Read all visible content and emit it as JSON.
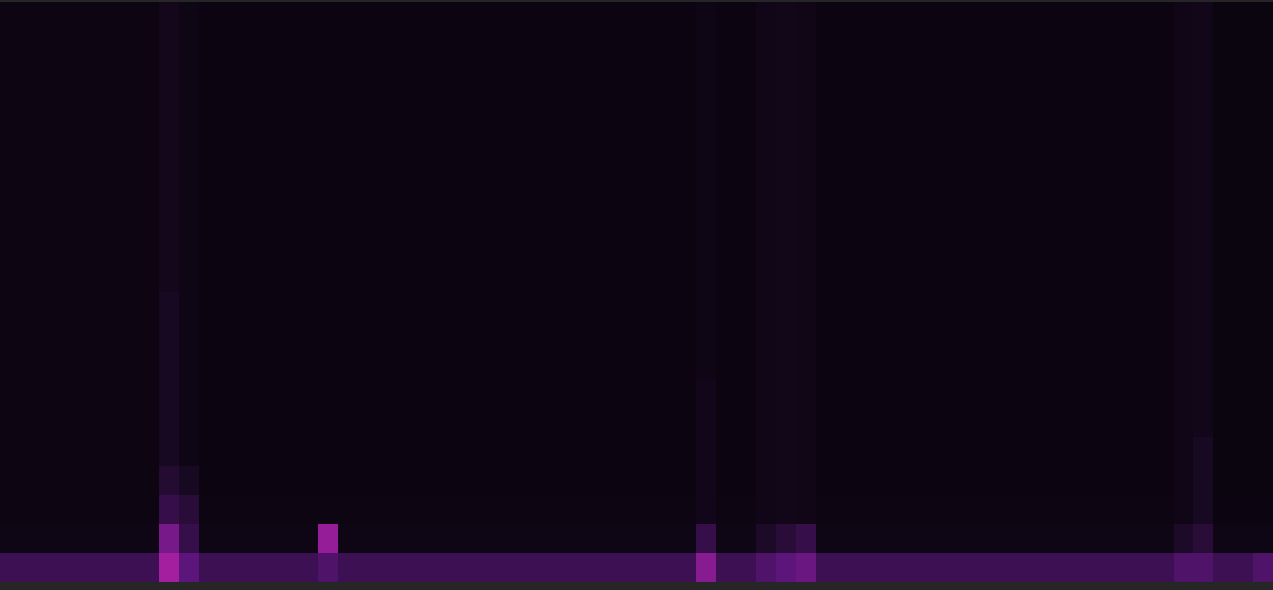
{
  "chart_data": {
    "type": "heatmap",
    "tick_labels": false,
    "zlim": [
      0,
      1
    ],
    "cells": [
      [
        0.08,
        0.08,
        0.08,
        0.08,
        0.08,
        0.08,
        0.08,
        0.08,
        0.16,
        0.1,
        0.07,
        0.07,
        0.07,
        0.07,
        0.07,
        0.07,
        0.07,
        0.07,
        0.07,
        0.07,
        0.07,
        0.07,
        0.07,
        0.07,
        0.07,
        0.07,
        0.07,
        0.07,
        0.07,
        0.07,
        0.07,
        0.07,
        0.07,
        0.07,
        0.07,
        0.1,
        0.07,
        0.07,
        0.12,
        0.13,
        0.11,
        0.07,
        0.07,
        0.07,
        0.07,
        0.07,
        0.07,
        0.07,
        0.07,
        0.07,
        0.07,
        0.07,
        0.07,
        0.07,
        0.07,
        0.07,
        0.07,
        0.07,
        0.07,
        0.12,
        0.14,
        0.06,
        0.06,
        0.06
      ],
      [
        0.08,
        0.08,
        0.08,
        0.08,
        0.08,
        0.08,
        0.08,
        0.08,
        0.16,
        0.1,
        0.07,
        0.07,
        0.07,
        0.07,
        0.07,
        0.07,
        0.07,
        0.07,
        0.07,
        0.07,
        0.07,
        0.07,
        0.07,
        0.07,
        0.07,
        0.07,
        0.07,
        0.07,
        0.07,
        0.07,
        0.07,
        0.07,
        0.07,
        0.07,
        0.07,
        0.1,
        0.07,
        0.07,
        0.12,
        0.13,
        0.11,
        0.07,
        0.07,
        0.07,
        0.07,
        0.07,
        0.07,
        0.07,
        0.07,
        0.07,
        0.07,
        0.07,
        0.07,
        0.07,
        0.07,
        0.07,
        0.07,
        0.07,
        0.07,
        0.12,
        0.14,
        0.06,
        0.06,
        0.06
      ],
      [
        0.08,
        0.08,
        0.08,
        0.08,
        0.08,
        0.08,
        0.08,
        0.08,
        0.16,
        0.1,
        0.07,
        0.07,
        0.07,
        0.07,
        0.07,
        0.07,
        0.07,
        0.07,
        0.07,
        0.07,
        0.07,
        0.07,
        0.07,
        0.07,
        0.07,
        0.07,
        0.07,
        0.07,
        0.07,
        0.07,
        0.07,
        0.07,
        0.07,
        0.07,
        0.07,
        0.1,
        0.07,
        0.07,
        0.12,
        0.13,
        0.11,
        0.07,
        0.07,
        0.07,
        0.07,
        0.07,
        0.07,
        0.07,
        0.07,
        0.07,
        0.07,
        0.07,
        0.07,
        0.07,
        0.07,
        0.07,
        0.07,
        0.07,
        0.07,
        0.12,
        0.14,
        0.06,
        0.06,
        0.06
      ],
      [
        0.08,
        0.08,
        0.08,
        0.08,
        0.08,
        0.08,
        0.08,
        0.08,
        0.16,
        0.1,
        0.07,
        0.07,
        0.07,
        0.07,
        0.07,
        0.07,
        0.07,
        0.07,
        0.07,
        0.07,
        0.07,
        0.07,
        0.07,
        0.07,
        0.07,
        0.07,
        0.07,
        0.07,
        0.07,
        0.07,
        0.07,
        0.07,
        0.07,
        0.07,
        0.07,
        0.1,
        0.07,
        0.07,
        0.12,
        0.13,
        0.11,
        0.07,
        0.07,
        0.07,
        0.07,
        0.07,
        0.07,
        0.07,
        0.07,
        0.07,
        0.07,
        0.07,
        0.07,
        0.07,
        0.07,
        0.07,
        0.07,
        0.07,
        0.07,
        0.12,
        0.14,
        0.06,
        0.06,
        0.06
      ],
      [
        0.08,
        0.08,
        0.08,
        0.08,
        0.08,
        0.08,
        0.08,
        0.08,
        0.16,
        0.1,
        0.07,
        0.07,
        0.07,
        0.07,
        0.07,
        0.07,
        0.07,
        0.07,
        0.07,
        0.07,
        0.07,
        0.07,
        0.07,
        0.07,
        0.07,
        0.07,
        0.07,
        0.07,
        0.07,
        0.07,
        0.07,
        0.07,
        0.07,
        0.07,
        0.07,
        0.1,
        0.07,
        0.07,
        0.12,
        0.13,
        0.11,
        0.07,
        0.07,
        0.07,
        0.07,
        0.07,
        0.07,
        0.07,
        0.07,
        0.07,
        0.07,
        0.07,
        0.07,
        0.07,
        0.07,
        0.07,
        0.07,
        0.07,
        0.07,
        0.12,
        0.14,
        0.06,
        0.06,
        0.06
      ],
      [
        0.08,
        0.08,
        0.08,
        0.08,
        0.08,
        0.08,
        0.08,
        0.08,
        0.16,
        0.1,
        0.07,
        0.07,
        0.07,
        0.07,
        0.07,
        0.07,
        0.07,
        0.07,
        0.07,
        0.07,
        0.07,
        0.07,
        0.07,
        0.07,
        0.07,
        0.07,
        0.07,
        0.07,
        0.07,
        0.07,
        0.07,
        0.07,
        0.07,
        0.07,
        0.07,
        0.1,
        0.07,
        0.07,
        0.12,
        0.13,
        0.11,
        0.07,
        0.07,
        0.07,
        0.07,
        0.07,
        0.07,
        0.07,
        0.07,
        0.07,
        0.07,
        0.07,
        0.07,
        0.07,
        0.07,
        0.07,
        0.07,
        0.07,
        0.07,
        0.12,
        0.14,
        0.06,
        0.06,
        0.06
      ],
      [
        0.08,
        0.08,
        0.08,
        0.08,
        0.08,
        0.08,
        0.08,
        0.08,
        0.16,
        0.1,
        0.07,
        0.07,
        0.07,
        0.07,
        0.07,
        0.07,
        0.07,
        0.07,
        0.07,
        0.07,
        0.07,
        0.07,
        0.07,
        0.07,
        0.07,
        0.07,
        0.07,
        0.07,
        0.07,
        0.07,
        0.07,
        0.07,
        0.07,
        0.07,
        0.07,
        0.1,
        0.07,
        0.07,
        0.12,
        0.13,
        0.11,
        0.07,
        0.07,
        0.07,
        0.07,
        0.07,
        0.07,
        0.07,
        0.07,
        0.07,
        0.07,
        0.07,
        0.07,
        0.07,
        0.07,
        0.07,
        0.07,
        0.07,
        0.07,
        0.12,
        0.14,
        0.06,
        0.06,
        0.06
      ],
      [
        0.08,
        0.08,
        0.08,
        0.08,
        0.08,
        0.08,
        0.08,
        0.08,
        0.16,
        0.1,
        0.07,
        0.07,
        0.07,
        0.07,
        0.07,
        0.07,
        0.07,
        0.07,
        0.07,
        0.07,
        0.07,
        0.07,
        0.07,
        0.07,
        0.07,
        0.07,
        0.07,
        0.07,
        0.07,
        0.07,
        0.07,
        0.07,
        0.07,
        0.07,
        0.07,
        0.1,
        0.07,
        0.07,
        0.12,
        0.13,
        0.11,
        0.07,
        0.07,
        0.07,
        0.07,
        0.07,
        0.07,
        0.07,
        0.07,
        0.07,
        0.07,
        0.07,
        0.07,
        0.07,
        0.07,
        0.07,
        0.07,
        0.07,
        0.07,
        0.12,
        0.14,
        0.06,
        0.06,
        0.06
      ],
      [
        0.08,
        0.08,
        0.08,
        0.08,
        0.08,
        0.08,
        0.08,
        0.08,
        0.16,
        0.1,
        0.07,
        0.07,
        0.07,
        0.07,
        0.07,
        0.07,
        0.07,
        0.07,
        0.07,
        0.07,
        0.07,
        0.07,
        0.07,
        0.07,
        0.07,
        0.07,
        0.07,
        0.07,
        0.07,
        0.07,
        0.07,
        0.07,
        0.07,
        0.07,
        0.07,
        0.1,
        0.07,
        0.07,
        0.12,
        0.13,
        0.11,
        0.07,
        0.07,
        0.07,
        0.07,
        0.07,
        0.07,
        0.07,
        0.07,
        0.07,
        0.07,
        0.07,
        0.07,
        0.07,
        0.07,
        0.07,
        0.07,
        0.07,
        0.07,
        0.12,
        0.14,
        0.06,
        0.06,
        0.06
      ],
      [
        0.08,
        0.08,
        0.08,
        0.08,
        0.08,
        0.08,
        0.08,
        0.08,
        0.16,
        0.1,
        0.07,
        0.07,
        0.07,
        0.07,
        0.07,
        0.07,
        0.07,
        0.07,
        0.07,
        0.07,
        0.07,
        0.07,
        0.07,
        0.07,
        0.07,
        0.07,
        0.07,
        0.07,
        0.07,
        0.07,
        0.07,
        0.07,
        0.07,
        0.07,
        0.07,
        0.1,
        0.07,
        0.07,
        0.12,
        0.13,
        0.11,
        0.07,
        0.07,
        0.07,
        0.07,
        0.07,
        0.07,
        0.07,
        0.07,
        0.07,
        0.07,
        0.07,
        0.07,
        0.07,
        0.07,
        0.07,
        0.07,
        0.07,
        0.07,
        0.12,
        0.14,
        0.06,
        0.06,
        0.06
      ],
      [
        0.08,
        0.08,
        0.08,
        0.08,
        0.08,
        0.08,
        0.08,
        0.08,
        0.2,
        0.1,
        0.07,
        0.07,
        0.07,
        0.07,
        0.07,
        0.07,
        0.07,
        0.07,
        0.07,
        0.07,
        0.07,
        0.07,
        0.07,
        0.07,
        0.07,
        0.07,
        0.07,
        0.07,
        0.07,
        0.07,
        0.07,
        0.07,
        0.07,
        0.07,
        0.07,
        0.1,
        0.07,
        0.07,
        0.12,
        0.13,
        0.11,
        0.07,
        0.07,
        0.07,
        0.07,
        0.07,
        0.07,
        0.07,
        0.07,
        0.07,
        0.07,
        0.07,
        0.07,
        0.07,
        0.07,
        0.07,
        0.07,
        0.07,
        0.07,
        0.12,
        0.14,
        0.06,
        0.06,
        0.06
      ],
      [
        0.08,
        0.08,
        0.08,
        0.08,
        0.08,
        0.08,
        0.08,
        0.08,
        0.2,
        0.1,
        0.07,
        0.07,
        0.07,
        0.07,
        0.07,
        0.07,
        0.07,
        0.07,
        0.07,
        0.07,
        0.07,
        0.07,
        0.07,
        0.07,
        0.07,
        0.07,
        0.07,
        0.07,
        0.07,
        0.07,
        0.07,
        0.07,
        0.07,
        0.07,
        0.07,
        0.1,
        0.07,
        0.07,
        0.12,
        0.13,
        0.11,
        0.07,
        0.07,
        0.07,
        0.07,
        0.07,
        0.07,
        0.07,
        0.07,
        0.07,
        0.07,
        0.07,
        0.07,
        0.07,
        0.07,
        0.07,
        0.07,
        0.07,
        0.07,
        0.12,
        0.14,
        0.06,
        0.06,
        0.06
      ],
      [
        0.08,
        0.08,
        0.08,
        0.08,
        0.08,
        0.08,
        0.08,
        0.08,
        0.2,
        0.1,
        0.07,
        0.07,
        0.07,
        0.07,
        0.07,
        0.07,
        0.07,
        0.07,
        0.07,
        0.07,
        0.07,
        0.07,
        0.07,
        0.07,
        0.07,
        0.07,
        0.07,
        0.07,
        0.07,
        0.07,
        0.07,
        0.07,
        0.07,
        0.07,
        0.07,
        0.1,
        0.07,
        0.07,
        0.12,
        0.13,
        0.11,
        0.07,
        0.07,
        0.07,
        0.07,
        0.07,
        0.07,
        0.07,
        0.07,
        0.07,
        0.07,
        0.07,
        0.07,
        0.07,
        0.07,
        0.07,
        0.07,
        0.07,
        0.07,
        0.12,
        0.14,
        0.06,
        0.06,
        0.06
      ],
      [
        0.08,
        0.08,
        0.08,
        0.08,
        0.08,
        0.08,
        0.08,
        0.08,
        0.2,
        0.1,
        0.07,
        0.07,
        0.07,
        0.07,
        0.07,
        0.07,
        0.07,
        0.07,
        0.07,
        0.07,
        0.07,
        0.07,
        0.07,
        0.07,
        0.07,
        0.07,
        0.07,
        0.07,
        0.07,
        0.07,
        0.07,
        0.07,
        0.07,
        0.07,
        0.07,
        0.14,
        0.07,
        0.07,
        0.12,
        0.13,
        0.11,
        0.07,
        0.07,
        0.07,
        0.07,
        0.07,
        0.07,
        0.07,
        0.07,
        0.07,
        0.07,
        0.07,
        0.07,
        0.07,
        0.07,
        0.07,
        0.07,
        0.07,
        0.07,
        0.12,
        0.14,
        0.06,
        0.06,
        0.06
      ],
      [
        0.08,
        0.08,
        0.08,
        0.08,
        0.08,
        0.08,
        0.08,
        0.08,
        0.2,
        0.1,
        0.07,
        0.07,
        0.07,
        0.07,
        0.07,
        0.07,
        0.07,
        0.07,
        0.07,
        0.07,
        0.07,
        0.07,
        0.07,
        0.07,
        0.07,
        0.07,
        0.07,
        0.07,
        0.07,
        0.07,
        0.07,
        0.07,
        0.07,
        0.07,
        0.07,
        0.14,
        0.07,
        0.07,
        0.12,
        0.13,
        0.11,
        0.07,
        0.07,
        0.07,
        0.07,
        0.07,
        0.07,
        0.07,
        0.07,
        0.07,
        0.07,
        0.07,
        0.07,
        0.07,
        0.07,
        0.07,
        0.07,
        0.07,
        0.07,
        0.12,
        0.14,
        0.06,
        0.06,
        0.06
      ],
      [
        0.08,
        0.08,
        0.08,
        0.08,
        0.08,
        0.08,
        0.08,
        0.08,
        0.2,
        0.1,
        0.07,
        0.07,
        0.07,
        0.07,
        0.07,
        0.07,
        0.07,
        0.07,
        0.07,
        0.07,
        0.07,
        0.07,
        0.07,
        0.07,
        0.07,
        0.07,
        0.07,
        0.07,
        0.07,
        0.07,
        0.07,
        0.07,
        0.07,
        0.07,
        0.07,
        0.14,
        0.07,
        0.07,
        0.12,
        0.13,
        0.11,
        0.07,
        0.07,
        0.07,
        0.07,
        0.07,
        0.07,
        0.07,
        0.07,
        0.07,
        0.07,
        0.07,
        0.07,
        0.07,
        0.07,
        0.07,
        0.07,
        0.07,
        0.07,
        0.12,
        0.2,
        0.06,
        0.06,
        0.06
      ],
      [
        0.08,
        0.08,
        0.08,
        0.08,
        0.08,
        0.08,
        0.08,
        0.08,
        0.28,
        0.2,
        0.07,
        0.07,
        0.07,
        0.07,
        0.07,
        0.07,
        0.07,
        0.07,
        0.07,
        0.07,
        0.07,
        0.07,
        0.07,
        0.07,
        0.07,
        0.07,
        0.07,
        0.07,
        0.07,
        0.07,
        0.07,
        0.07,
        0.07,
        0.07,
        0.07,
        0.14,
        0.07,
        0.07,
        0.12,
        0.13,
        0.11,
        0.07,
        0.07,
        0.07,
        0.07,
        0.07,
        0.07,
        0.07,
        0.07,
        0.07,
        0.07,
        0.07,
        0.07,
        0.07,
        0.07,
        0.07,
        0.07,
        0.07,
        0.07,
        0.12,
        0.2,
        0.06,
        0.06,
        0.06
      ],
      [
        0.08,
        0.08,
        0.08,
        0.08,
        0.08,
        0.08,
        0.08,
        0.08,
        0.35,
        0.3,
        0.08,
        0.08,
        0.08,
        0.08,
        0.08,
        0.08,
        0.08,
        0.08,
        0.08,
        0.08,
        0.08,
        0.08,
        0.08,
        0.08,
        0.08,
        0.08,
        0.08,
        0.08,
        0.08,
        0.08,
        0.08,
        0.08,
        0.08,
        0.08,
        0.08,
        0.14,
        0.08,
        0.08,
        0.12,
        0.13,
        0.11,
        0.08,
        0.08,
        0.08,
        0.08,
        0.08,
        0.08,
        0.08,
        0.08,
        0.08,
        0.08,
        0.08,
        0.08,
        0.08,
        0.08,
        0.08,
        0.08,
        0.08,
        0.08,
        0.12,
        0.2,
        0.07,
        0.07,
        0.07
      ],
      [
        0.1,
        0.1,
        0.1,
        0.1,
        0.1,
        0.1,
        0.1,
        0.1,
        0.6,
        0.35,
        0.1,
        0.1,
        0.1,
        0.1,
        0.1,
        0.1,
        0.7,
        0.1,
        0.1,
        0.1,
        0.1,
        0.1,
        0.1,
        0.1,
        0.1,
        0.1,
        0.1,
        0.1,
        0.1,
        0.1,
        0.1,
        0.1,
        0.1,
        0.1,
        0.1,
        0.35,
        0.1,
        0.1,
        0.25,
        0.3,
        0.35,
        0.1,
        0.1,
        0.1,
        0.1,
        0.1,
        0.1,
        0.1,
        0.1,
        0.1,
        0.1,
        0.1,
        0.1,
        0.1,
        0.1,
        0.1,
        0.1,
        0.1,
        0.1,
        0.25,
        0.3,
        0.1,
        0.1,
        0.1
      ],
      [
        0.38,
        0.38,
        0.38,
        0.38,
        0.38,
        0.38,
        0.38,
        0.38,
        0.75,
        0.5,
        0.38,
        0.38,
        0.38,
        0.38,
        0.38,
        0.38,
        0.45,
        0.38,
        0.38,
        0.38,
        0.38,
        0.38,
        0.38,
        0.38,
        0.38,
        0.38,
        0.38,
        0.38,
        0.38,
        0.38,
        0.38,
        0.38,
        0.38,
        0.38,
        0.38,
        0.65,
        0.38,
        0.38,
        0.45,
        0.5,
        0.55,
        0.38,
        0.38,
        0.38,
        0.38,
        0.38,
        0.38,
        0.38,
        0.38,
        0.38,
        0.38,
        0.38,
        0.38,
        0.38,
        0.38,
        0.38,
        0.38,
        0.38,
        0.38,
        0.45,
        0.45,
        0.38,
        0.38,
        0.45
      ]
    ]
  }
}
